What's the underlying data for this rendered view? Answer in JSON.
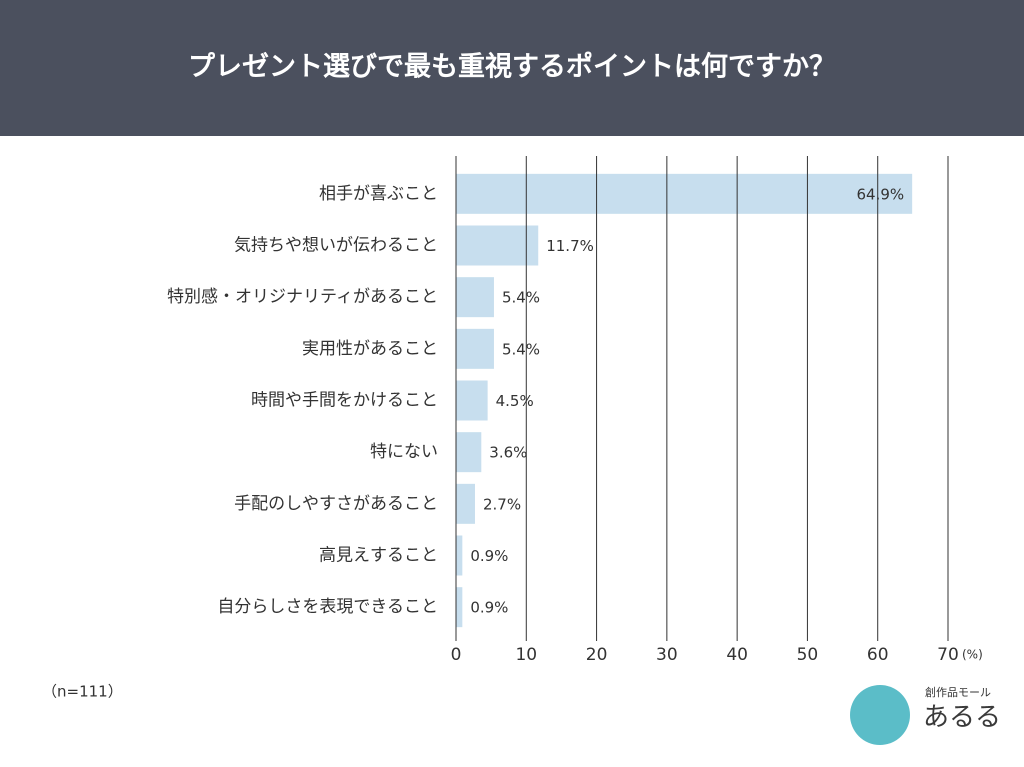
{
  "chart_data": {
    "type": "bar",
    "orientation": "horizontal",
    "title": "プレゼント選びで最も重視するポイントは何ですか？",
    "categories": [
      "相手が喜ぶこと",
      "気持ちや想いが伝わること",
      "特別感・オリジナリティがあること",
      "実用性があること",
      "時間や手間をかけること",
      "特にない",
      "手配のしやすさがあること",
      "高見えすること",
      "自分らしさを表現できること"
    ],
    "values": [
      64.9,
      11.7,
      5.4,
      5.4,
      4.5,
      3.6,
      2.7,
      0.9,
      0.9
    ],
    "value_labels": [
      "64.9%",
      "11.7%",
      "5.4%",
      "5.4%",
      "4.5%",
      "3.6%",
      "2.7%",
      "0.9%",
      "0.9%"
    ],
    "color": "#c7deee",
    "xlim": [
      0,
      70
    ],
    "xticks": [
      0,
      10,
      20,
      30,
      40,
      50,
      60,
      70
    ],
    "xlabel": "(%)",
    "grid": true,
    "note": "（n=111）"
  },
  "logo": {
    "tagline": "創作品モール",
    "name": "あるる"
  }
}
